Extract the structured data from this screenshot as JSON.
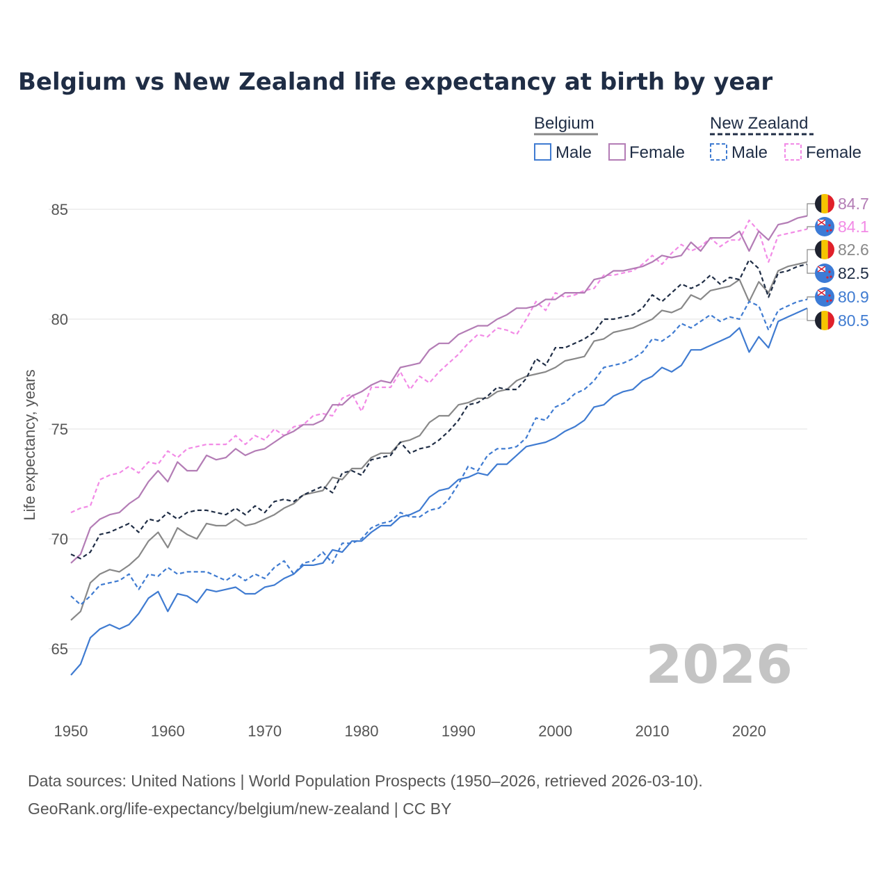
{
  "chart_data": {
    "type": "line",
    "title": "Belgium vs New Zealand life expectancy at birth by year",
    "ylabel": "Life expectancy, years",
    "xlabel": "",
    "x_start": 1950,
    "x_end": 2026,
    "xlim": [
      1950,
      2026
    ],
    "ylim": [
      62.5,
      88
    ],
    "x_ticks": [
      "1950",
      "1960",
      "1970",
      "1980",
      "1990",
      "2000",
      "2010",
      "2020"
    ],
    "y_ticks": [
      "65",
      "70",
      "75",
      "80",
      "85"
    ],
    "grid": true,
    "year_watermark": "2026",
    "legend": {
      "position": "top-right",
      "groups": [
        {
          "name": "Belgium",
          "items": [
            "Male",
            "Female"
          ]
        },
        {
          "name": "New Zealand",
          "items": [
            "Male",
            "Female"
          ]
        }
      ]
    },
    "series": [
      {
        "key": "bel_total",
        "name": "Belgium",
        "color": "#888888",
        "dashed": false,
        "values": [
          66.3,
          66.7,
          68.0,
          68.4,
          68.6,
          68.5,
          68.8,
          69.2,
          69.9,
          70.3,
          69.6,
          70.5,
          70.2,
          70.0,
          70.7,
          70.6,
          70.6,
          70.9,
          70.6,
          70.7,
          70.9,
          71.1,
          71.4,
          71.6,
          72.0,
          72.1,
          72.2,
          72.8,
          72.7,
          73.2,
          73.2,
          73.7,
          73.9,
          73.9,
          74.4,
          74.5,
          74.7,
          75.3,
          75.6,
          75.6,
          76.1,
          76.2,
          76.4,
          76.4,
          76.7,
          76.8,
          77.2,
          77.4,
          77.5,
          77.6,
          77.8,
          78.1,
          78.2,
          78.3,
          79.0,
          79.1,
          79.4,
          79.5,
          79.6,
          79.8,
          80.0,
          80.4,
          80.3,
          80.5,
          81.1,
          80.9,
          81.3,
          81.4,
          81.5,
          81.8,
          80.8,
          81.7,
          81.2,
          82.2,
          82.4,
          82.5,
          82.6
        ]
      },
      {
        "key": "bel_male",
        "name": "Belgium Male",
        "color": "#3f7bd1",
        "dashed": false,
        "values": [
          63.8,
          64.3,
          65.5,
          65.9,
          66.1,
          65.9,
          66.1,
          66.6,
          67.3,
          67.6,
          66.7,
          67.5,
          67.4,
          67.1,
          67.7,
          67.6,
          67.7,
          67.8,
          67.5,
          67.5,
          67.8,
          67.9,
          68.2,
          68.4,
          68.8,
          68.8,
          68.9,
          69.5,
          69.4,
          69.9,
          69.9,
          70.3,
          70.6,
          70.6,
          71.0,
          71.1,
          71.3,
          71.9,
          72.2,
          72.3,
          72.7,
          72.8,
          73.0,
          72.9,
          73.4,
          73.4,
          73.8,
          74.2,
          74.3,
          74.4,
          74.6,
          74.9,
          75.1,
          75.4,
          76.0,
          76.1,
          76.5,
          76.7,
          76.8,
          77.2,
          77.4,
          77.8,
          77.6,
          77.9,
          78.6,
          78.6,
          78.8,
          79.0,
          79.2,
          79.6,
          78.5,
          79.2,
          78.7,
          79.9,
          80.1,
          80.3,
          80.5
        ]
      },
      {
        "key": "bel_female",
        "name": "Belgium Female",
        "color": "#b37cb5",
        "dashed": false,
        "values": [
          68.9,
          69.3,
          70.5,
          70.9,
          71.1,
          71.2,
          71.6,
          71.9,
          72.6,
          73.1,
          72.6,
          73.5,
          73.1,
          73.1,
          73.8,
          73.6,
          73.7,
          74.1,
          73.8,
          74.0,
          74.1,
          74.4,
          74.7,
          74.9,
          75.2,
          75.2,
          75.4,
          76.1,
          76.1,
          76.5,
          76.7,
          77.0,
          77.2,
          77.1,
          77.8,
          77.9,
          78.0,
          78.6,
          78.9,
          78.9,
          79.3,
          79.5,
          79.7,
          79.7,
          80.0,
          80.2,
          80.5,
          80.5,
          80.6,
          80.9,
          80.9,
          81.2,
          81.2,
          81.2,
          81.8,
          81.9,
          82.2,
          82.2,
          82.3,
          82.4,
          82.6,
          82.9,
          82.8,
          82.9,
          83.5,
          83.1,
          83.7,
          83.7,
          83.7,
          84.0,
          83.1,
          84.0,
          83.6,
          84.3,
          84.4,
          84.6,
          84.7
        ]
      },
      {
        "key": "nz_total",
        "name": "New Zealand",
        "color": "#1f2d45",
        "dashed": true,
        "values": [
          69.3,
          69.1,
          69.4,
          70.2,
          70.3,
          70.5,
          70.7,
          70.3,
          70.9,
          70.8,
          71.2,
          70.9,
          71.2,
          71.3,
          71.3,
          71.2,
          71.1,
          71.4,
          71.1,
          71.5,
          71.2,
          71.7,
          71.8,
          71.7,
          72.0,
          72.2,
          72.4,
          72.1,
          73.0,
          73.1,
          72.9,
          73.6,
          73.7,
          73.8,
          74.4,
          73.9,
          74.1,
          74.2,
          74.5,
          74.9,
          75.4,
          76.1,
          76.2,
          76.5,
          76.9,
          76.8,
          76.8,
          77.3,
          78.2,
          77.9,
          78.7,
          78.7,
          78.9,
          79.1,
          79.4,
          80.0,
          80.0,
          80.1,
          80.2,
          80.5,
          81.1,
          80.8,
          81.2,
          81.6,
          81.4,
          81.6,
          82.0,
          81.6,
          81.9,
          81.8,
          82.7,
          82.3,
          81.0,
          82.1,
          82.2,
          82.4,
          82.5
        ]
      },
      {
        "key": "nz_male",
        "name": "New Zealand Male",
        "color": "#3f7bd1",
        "dashed": true,
        "values": [
          67.4,
          67.0,
          67.4,
          67.9,
          68.0,
          68.1,
          68.4,
          67.7,
          68.4,
          68.3,
          68.7,
          68.4,
          68.5,
          68.5,
          68.5,
          68.3,
          68.1,
          68.4,
          68.1,
          68.4,
          68.2,
          68.7,
          69.0,
          68.4,
          68.9,
          69.0,
          69.4,
          68.9,
          69.8,
          69.8,
          70.0,
          70.5,
          70.7,
          70.8,
          71.2,
          71.0,
          71.0,
          71.3,
          71.4,
          71.8,
          72.5,
          73.3,
          73.1,
          73.8,
          74.1,
          74.1,
          74.2,
          74.6,
          75.5,
          75.4,
          76.0,
          76.2,
          76.6,
          76.8,
          77.2,
          77.8,
          77.9,
          78.0,
          78.2,
          78.5,
          79.1,
          79.0,
          79.3,
          79.8,
          79.6,
          79.9,
          80.2,
          79.9,
          80.1,
          80.0,
          80.8,
          80.6,
          79.5,
          80.4,
          80.6,
          80.8,
          80.9
        ]
      },
      {
        "key": "nz_female",
        "name": "New Zealand Female",
        "color": "#f28ae6",
        "dashed": true,
        "values": [
          71.2,
          71.4,
          71.5,
          72.7,
          72.9,
          73.0,
          73.3,
          73.0,
          73.5,
          73.4,
          74.0,
          73.7,
          74.1,
          74.2,
          74.3,
          74.3,
          74.3,
          74.7,
          74.3,
          74.7,
          74.5,
          75.0,
          74.7,
          75.1,
          75.2,
          75.6,
          75.7,
          75.6,
          76.4,
          76.6,
          75.8,
          76.9,
          76.9,
          76.9,
          77.6,
          76.8,
          77.4,
          77.1,
          77.6,
          78.0,
          78.4,
          78.9,
          79.3,
          79.2,
          79.6,
          79.5,
          79.3,
          80.0,
          80.8,
          80.4,
          81.2,
          81.0,
          81.1,
          81.3,
          81.4,
          82.0,
          82.0,
          82.1,
          82.2,
          82.5,
          82.9,
          82.5,
          83.0,
          83.4,
          83.1,
          83.3,
          83.7,
          83.3,
          83.6,
          83.6,
          84.5,
          84.0,
          82.6,
          83.8,
          83.9,
          84.0,
          84.1
        ]
      }
    ],
    "end_labels": [
      {
        "series": "bel_female",
        "country": "Belgium",
        "value": "84.7",
        "color": "#b37cb5"
      },
      {
        "series": "nz_female",
        "country": "New Zealand",
        "value": "84.1",
        "color": "#f28ae6"
      },
      {
        "series": "bel_total",
        "country": "Belgium",
        "value": "82.6",
        "color": "#888888"
      },
      {
        "series": "nz_total",
        "country": "New Zealand",
        "value": "82.5",
        "color": "#1f2d45"
      },
      {
        "series": "nz_male",
        "country": "New Zealand",
        "value": "80.9",
        "color": "#3f7bd1"
      },
      {
        "series": "bel_male",
        "country": "Belgium",
        "value": "80.5",
        "color": "#3f7bd1"
      }
    ]
  },
  "footer": {
    "line1": "Data sources: United Nations | World Population Prospects (1950–2026, retrieved 2026-03-10).",
    "line2": "GeoRank.org/life-expectancy/belgium/new-zealand | CC BY"
  }
}
